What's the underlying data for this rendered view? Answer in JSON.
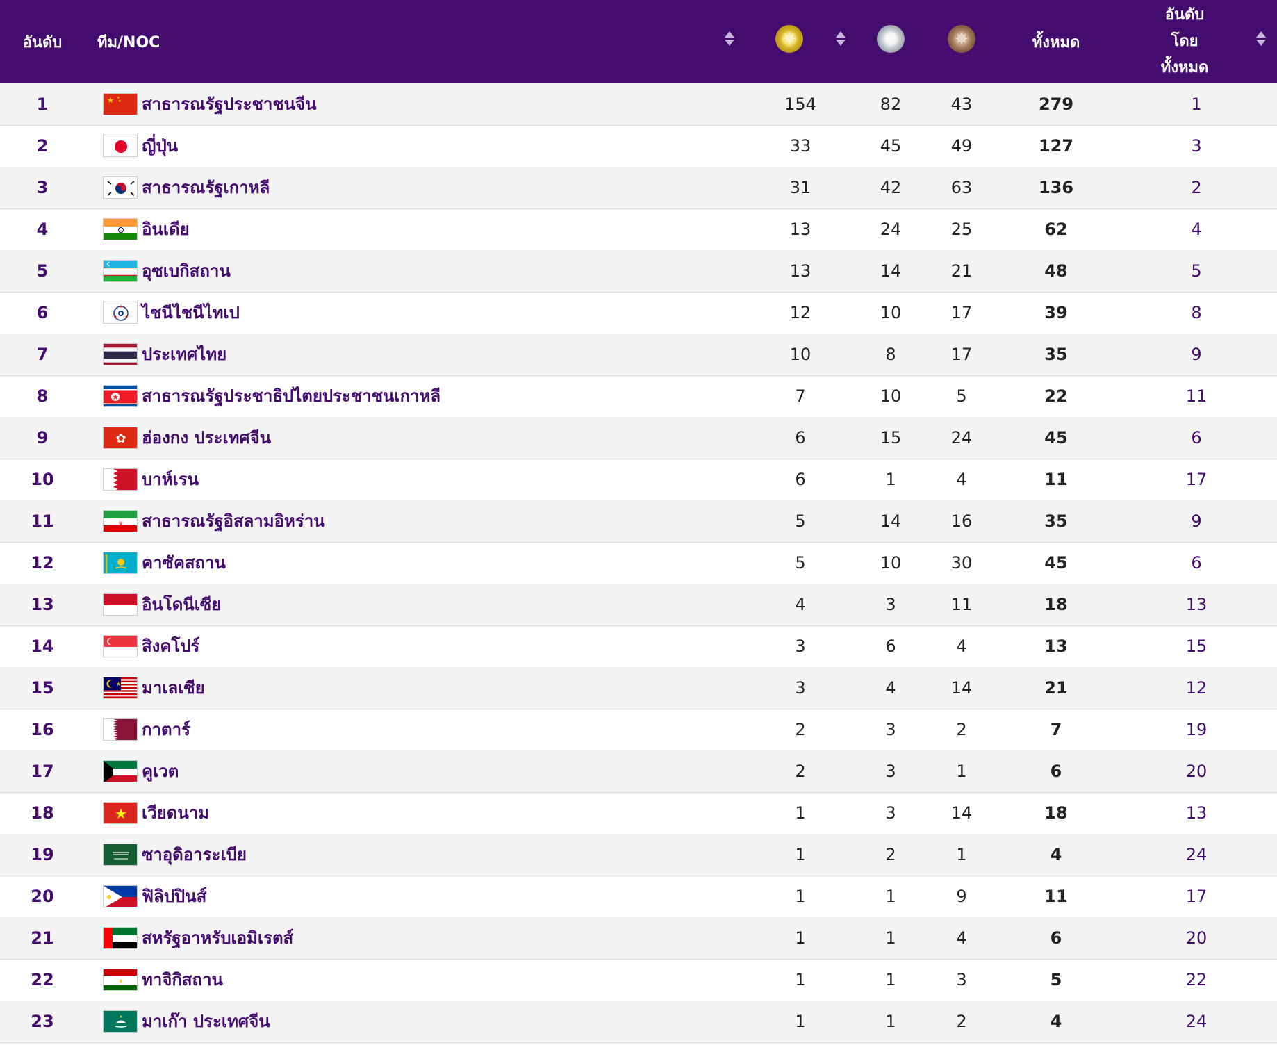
{
  "header": {
    "rank": "อันดับ",
    "team": "ทีม/NOC",
    "total": "ทั้งหมด",
    "rank_by_total_lines": [
      "อันดับ",
      "โดย",
      "ทั้งหมด"
    ]
  },
  "rows": [
    {
      "rank": "1",
      "team": "สาธารณรัฐประชาชนจีน",
      "flag": "china",
      "gold": "154",
      "silver": "82",
      "bronze": "43",
      "total": "279",
      "rank_total": "1"
    },
    {
      "rank": "2",
      "team": "ญี่ปุ่น",
      "flag": "japan",
      "gold": "33",
      "silver": "45",
      "bronze": "49",
      "total": "127",
      "rank_total": "3"
    },
    {
      "rank": "3",
      "team": "สาธารณรัฐเกาหลี",
      "flag": "korea",
      "gold": "31",
      "silver": "42",
      "bronze": "63",
      "total": "136",
      "rank_total": "2"
    },
    {
      "rank": "4",
      "team": "อินเดีย",
      "flag": "india",
      "gold": "13",
      "silver": "24",
      "bronze": "25",
      "total": "62",
      "rank_total": "4"
    },
    {
      "rank": "5",
      "team": "อุซเบกิสถาน",
      "flag": "uzbekistan",
      "gold": "13",
      "silver": "14",
      "bronze": "21",
      "total": "48",
      "rank_total": "5"
    },
    {
      "rank": "6",
      "team": "ไชนีไชนีไทเป",
      "flag": "chinese-taipei",
      "gold": "12",
      "silver": "10",
      "bronze": "17",
      "total": "39",
      "rank_total": "8"
    },
    {
      "rank": "7",
      "team": "ประเทศไทย",
      "flag": "thailand",
      "gold": "10",
      "silver": "8",
      "bronze": "17",
      "total": "35",
      "rank_total": "9"
    },
    {
      "rank": "8",
      "team": "สาธารณรัฐประชาธิปไตยประชาชนเกาหลี",
      "flag": "north-korea",
      "gold": "7",
      "silver": "10",
      "bronze": "5",
      "total": "22",
      "rank_total": "11"
    },
    {
      "rank": "9",
      "team": "ฮ่องกง ประเทศจีน",
      "flag": "hong-kong",
      "gold": "6",
      "silver": "15",
      "bronze": "24",
      "total": "45",
      "rank_total": "6"
    },
    {
      "rank": "10",
      "team": "บาห์เรน",
      "flag": "bahrain",
      "gold": "6",
      "silver": "1",
      "bronze": "4",
      "total": "11",
      "rank_total": "17"
    },
    {
      "rank": "11",
      "team": "สาธารณรัฐอิสลามอิหร่าน",
      "flag": "iran",
      "gold": "5",
      "silver": "14",
      "bronze": "16",
      "total": "35",
      "rank_total": "9"
    },
    {
      "rank": "12",
      "team": "คาซัคสถาน",
      "flag": "kazakhstan",
      "gold": "5",
      "silver": "10",
      "bronze": "30",
      "total": "45",
      "rank_total": "6"
    },
    {
      "rank": "13",
      "team": "อินโดนีเซีย",
      "flag": "indonesia",
      "gold": "4",
      "silver": "3",
      "bronze": "11",
      "total": "18",
      "rank_total": "13"
    },
    {
      "rank": "14",
      "team": "สิงคโปร์",
      "flag": "singapore",
      "gold": "3",
      "silver": "6",
      "bronze": "4",
      "total": "13",
      "rank_total": "15"
    },
    {
      "rank": "15",
      "team": "มาเลเซีย",
      "flag": "malaysia",
      "gold": "3",
      "silver": "4",
      "bronze": "14",
      "total": "21",
      "rank_total": "12"
    },
    {
      "rank": "16",
      "team": "กาตาร์",
      "flag": "qatar",
      "gold": "2",
      "silver": "3",
      "bronze": "2",
      "total": "7",
      "rank_total": "19"
    },
    {
      "rank": "17",
      "team": "คูเวต",
      "flag": "kuwait",
      "gold": "2",
      "silver": "3",
      "bronze": "1",
      "total": "6",
      "rank_total": "20"
    },
    {
      "rank": "18",
      "team": "เวียดนาม",
      "flag": "vietnam",
      "gold": "1",
      "silver": "3",
      "bronze": "14",
      "total": "18",
      "rank_total": "13"
    },
    {
      "rank": "19",
      "team": "ซาอุดิอาระเบีย",
      "flag": "saudi-arabia",
      "gold": "1",
      "silver": "2",
      "bronze": "1",
      "total": "4",
      "rank_total": "24"
    },
    {
      "rank": "20",
      "team": "ฟิลิปปินส์",
      "flag": "philippines",
      "gold": "1",
      "silver": "1",
      "bronze": "9",
      "total": "11",
      "rank_total": "17"
    },
    {
      "rank": "21",
      "team": "สหรัฐอาหรับเอมิเรตส์",
      "flag": "uae",
      "gold": "1",
      "silver": "1",
      "bronze": "4",
      "total": "6",
      "rank_total": "20"
    },
    {
      "rank": "22",
      "team": "ทาจิกิสถาน",
      "flag": "tajikistan",
      "gold": "1",
      "silver": "1",
      "bronze": "3",
      "total": "5",
      "rank_total": "22"
    },
    {
      "rank": "23",
      "team": "มาเก๊า ประเทศจีน",
      "flag": "macao",
      "gold": "1",
      "silver": "1",
      "bronze": "2",
      "total": "4",
      "rank_total": "24"
    }
  ],
  "colors": {
    "header_bg": "#440c6e",
    "accent": "#440c6e",
    "alt_row": "#f4f4f4"
  }
}
